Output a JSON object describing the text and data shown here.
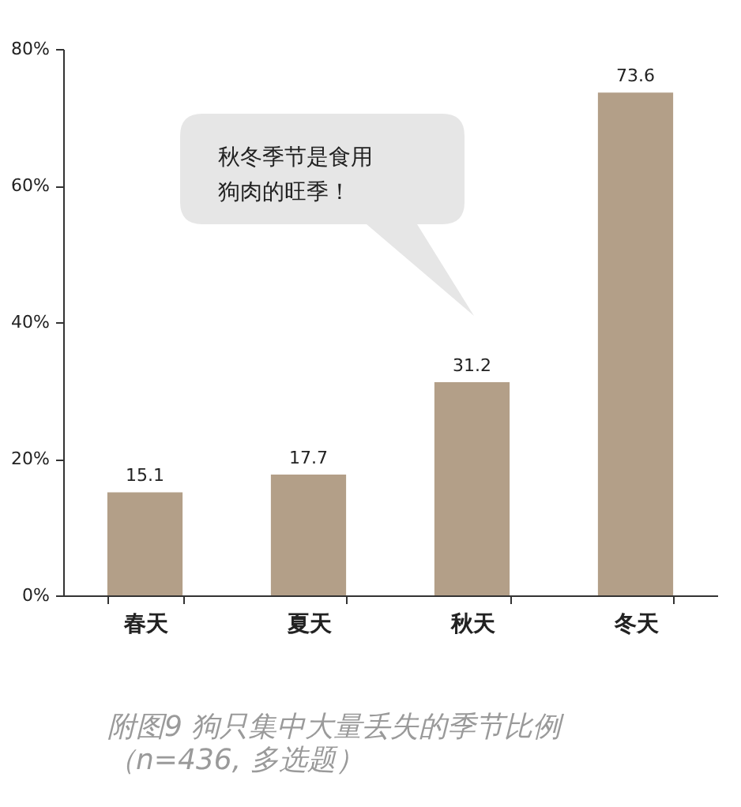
{
  "chart_data": {
    "type": "bar",
    "title": "附图9  狗只集中大量丢失的季节比例",
    "subtitle": "（n=436, 多选题）",
    "categories": [
      "春天",
      "夏天",
      "秋天",
      "冬天"
    ],
    "values": [
      15.1,
      17.7,
      31.2,
      73.6
    ],
    "color": "#b39f88",
    "ylim": [
      0,
      80
    ],
    "yticks": [
      {
        "value": 0,
        "label": "0%"
      },
      {
        "value": 20,
        "label": "20%"
      },
      {
        "value": 40,
        "label": "40%"
      },
      {
        "value": 60,
        "label": "60%"
      },
      {
        "value": 80,
        "label": "80%"
      }
    ],
    "data_labels": true,
    "grid": false,
    "annotations": [
      "秋冬季节是食用狗肉的旺季！"
    ]
  }
}
